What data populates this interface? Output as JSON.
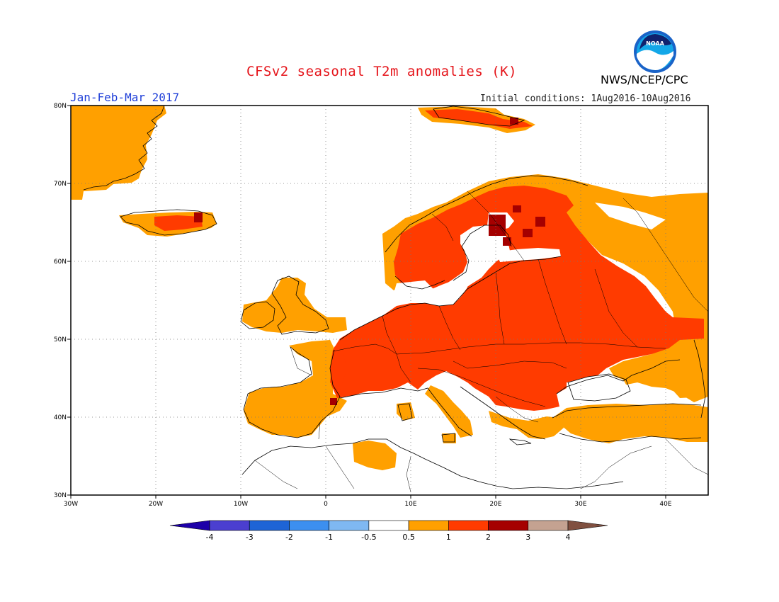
{
  "title": "CFSv2 seasonal T2m anomalies (K)",
  "season": "Jan-Feb-Mar 2017",
  "initial_conditions": "Initial conditions: 1Aug2016-10Aug2016",
  "agency": "NWS/NCEP/CPC",
  "logo_text": "NOAA",
  "map": {
    "lon_range": [
      -30,
      45
    ],
    "lat_range": [
      30,
      80
    ],
    "lon_ticks": [
      {
        "value": -30,
        "label": "30W"
      },
      {
        "value": -20,
        "label": "20W"
      },
      {
        "value": -10,
        "label": "10W"
      },
      {
        "value": 0,
        "label": "0"
      },
      {
        "value": 10,
        "label": "10E"
      },
      {
        "value": 20,
        "label": "20E"
      },
      {
        "value": 30,
        "label": "30E"
      },
      {
        "value": 40,
        "label": "40E"
      }
    ],
    "lat_ticks": [
      {
        "value": 30,
        "label": "30N"
      },
      {
        "value": 40,
        "label": "40N"
      },
      {
        "value": 50,
        "label": "50N"
      },
      {
        "value": 60,
        "label": "60N"
      },
      {
        "value": 70,
        "label": "70N"
      },
      {
        "value": 80,
        "label": "80N"
      }
    ],
    "grid": "dotted"
  },
  "colorbar": {
    "labels": [
      "-4",
      "-3",
      "-2",
      "-1",
      "-0.5",
      "0.5",
      "1",
      "2",
      "3",
      "4"
    ],
    "colors": [
      "#1d00a8",
      "#4b3fd0",
      "#1e64d6",
      "#3c8ff0",
      "#7fb8f2",
      "#ffffff",
      "#ffa000",
      "#ff3b00",
      "#a50000",
      "#c4a291",
      "#805040"
    ]
  }
}
